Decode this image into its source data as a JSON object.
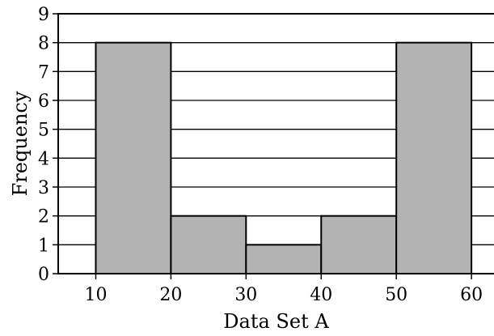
{
  "chart_data": {
    "type": "bar",
    "subtype": "histogram",
    "title": "",
    "xlabel": "Data Set A",
    "ylabel": "Frequency",
    "bins": [
      {
        "start": 10,
        "end": 20,
        "value": 8
      },
      {
        "start": 20,
        "end": 30,
        "value": 2
      },
      {
        "start": 30,
        "end": 40,
        "value": 1
      },
      {
        "start": 40,
        "end": 50,
        "value": 2
      },
      {
        "start": 50,
        "end": 60,
        "value": 8
      }
    ],
    "xlim": [
      5,
      63
    ],
    "ylim": [
      0,
      9
    ],
    "x_ticks": [
      10,
      20,
      30,
      40,
      50,
      60
    ],
    "y_ticks": [
      0,
      1,
      2,
      3,
      4,
      5,
      6,
      7,
      8,
      9
    ],
    "grid": "horizontal",
    "bar_color": "#b3b3b3",
    "edge_color": "#000000"
  }
}
